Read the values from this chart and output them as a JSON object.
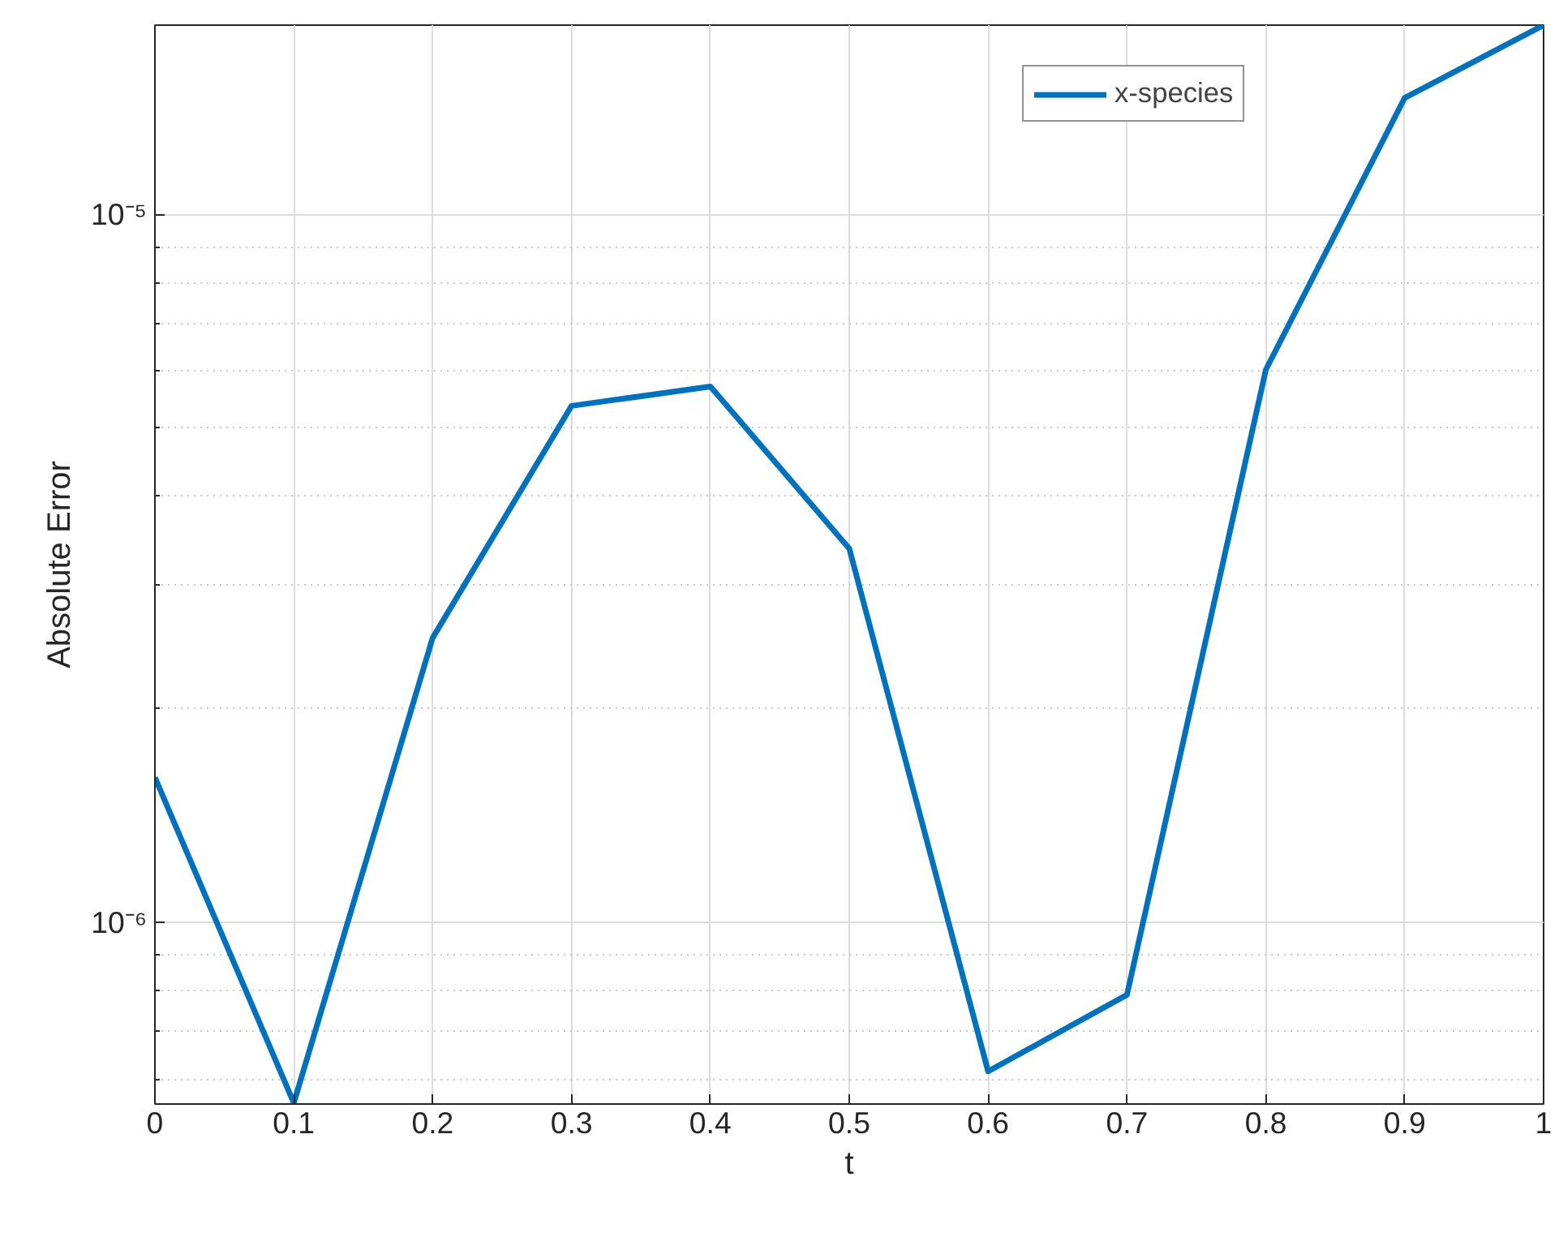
{
  "chart_data": {
    "type": "line",
    "xlabel": "t",
    "ylabel": "Absolute Error",
    "x": [
      0,
      0.1,
      0.2,
      0.3,
      0.4,
      0.5,
      0.6,
      0.7,
      0.8,
      0.9,
      1
    ],
    "series": [
      {
        "name": "x-species",
        "color": "#0072bd",
        "values": [
          1.6e-06,
          5.55e-07,
          2.52e-06,
          5.36e-06,
          5.71e-06,
          3.37e-06,
          6.15e-07,
          7.89e-07,
          6.03e-06,
          1.46e-05,
          1.85e-05
        ]
      }
    ],
    "log": "y",
    "xlim": [
      0,
      1
    ],
    "ylim": [
      5.53e-07,
      1.85e-05
    ],
    "xticks": [
      0,
      0.1,
      0.2,
      0.3,
      0.4,
      0.5,
      0.6,
      0.7,
      0.8,
      0.9,
      1
    ],
    "yticks": [
      {
        "value": 1e-06,
        "label": "10⁻⁶"
      },
      {
        "value": 1e-05,
        "label": "10⁻⁵"
      }
    ],
    "grid": true,
    "legend": "top right",
    "marker": "none",
    "line_style": "solid"
  }
}
